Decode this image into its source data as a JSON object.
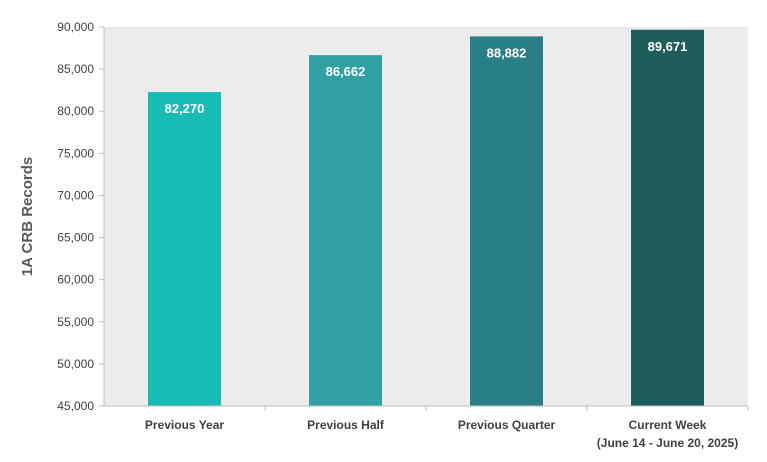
{
  "chart_data": {
    "type": "bar",
    "title": "",
    "xlabel": "",
    "ylabel": "1A CRB Records",
    "ylim": [
      45000,
      90000
    ],
    "yticks": [
      45000,
      50000,
      55000,
      60000,
      65000,
      70000,
      75000,
      80000,
      85000,
      90000
    ],
    "ytick_labels": [
      "45,000",
      "50,000",
      "55,000",
      "60,000",
      "65,000",
      "70,000",
      "75,000",
      "80,000",
      "85,000",
      "90,000"
    ],
    "grid": false,
    "categories": [
      [
        "Previous Year"
      ],
      [
        "Previous Half"
      ],
      [
        "Previous Quarter"
      ],
      [
        "Current Week",
        "(June 14 - June 20, 2025)"
      ]
    ],
    "values": [
      82270,
      86662,
      88882,
      89671
    ],
    "value_labels": [
      "82,270",
      "86,662",
      "88,882",
      "89,671"
    ],
    "colors": [
      "#17bcb4",
      "#32a1a5",
      "#287f85",
      "#1d5e5b"
    ],
    "plot_background": "#ececec"
  }
}
